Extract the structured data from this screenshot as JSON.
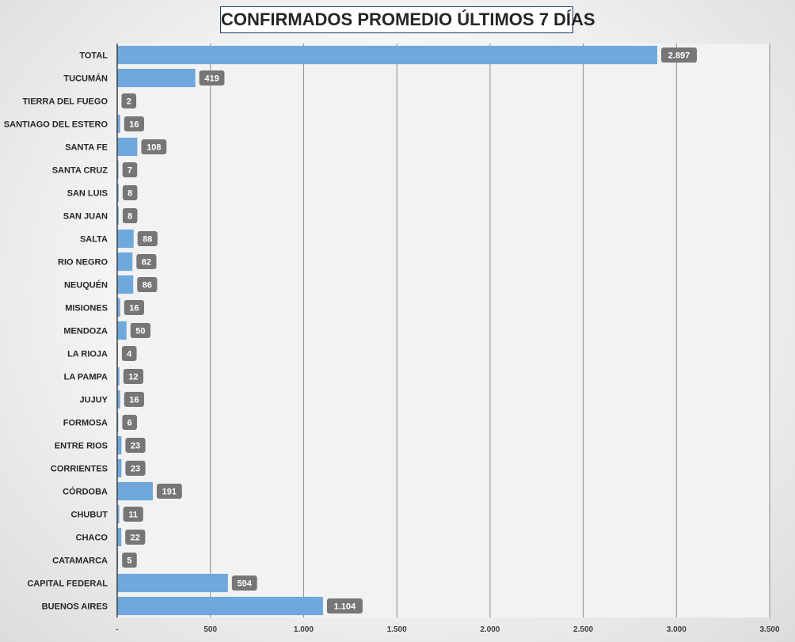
{
  "chart_data": {
    "type": "bar",
    "orientation": "horizontal",
    "title": "CONFIRMADOS PROMEDIO ÚLTIMOS 7 DÍAS",
    "xlabel": "",
    "ylabel": "",
    "xlim": [
      0,
      3500
    ],
    "x_ticks": [
      0,
      500,
      1000,
      1500,
      2000,
      2500,
      3000,
      3500
    ],
    "x_tick_labels": [
      "-",
      "500",
      "1.000",
      "1.500",
      "2.000",
      "2.500",
      "3.000",
      "3.500"
    ],
    "grid": true,
    "legend": "none",
    "categories": [
      "TOTAL",
      "TUCUMÁN",
      "TIERRA  DEL FUEGO",
      "SANTIAGO  DEL ESTERO",
      "SANTA  FE",
      "SANTA CRUZ",
      "SAN LUIS",
      "SAN JUAN",
      "SALTA",
      "RIO  NEGRO",
      "NEUQUÉN",
      "MISIONES",
      "MENDOZA",
      "LA RIOJA",
      "LA PAMPA",
      "JUJUY",
      "FORMOSA",
      "ENTRE  RIOS",
      "CORRIENTES",
      "CÓRDOBA",
      "CHUBUT",
      "CHACO",
      "CATAMARCA",
      "CAPITAL  FEDERAL",
      "BUENOS  AIRES"
    ],
    "values": [
      2897,
      419,
      2,
      16,
      108,
      7,
      8,
      8,
      88,
      82,
      86,
      16,
      50,
      4,
      12,
      16,
      6,
      23,
      23,
      191,
      11,
      22,
      5,
      594,
      1104
    ],
    "data_labels": [
      "2.897",
      "419",
      "2",
      "16",
      "108",
      "7",
      "8",
      "8",
      "88",
      "82",
      "86",
      "16",
      "50",
      "4",
      "12",
      "16",
      "6",
      "23",
      "23",
      "191",
      "11",
      "22",
      "5",
      "594",
      "1.104"
    ],
    "colors": {
      "bar": "#6fa8dc",
      "data_label_bg": "#767676",
      "plot_bg": "#f2f2f2",
      "gridline": "#8c8c8c",
      "axis_line": "#404040",
      "title_border": "#1f3864"
    }
  }
}
